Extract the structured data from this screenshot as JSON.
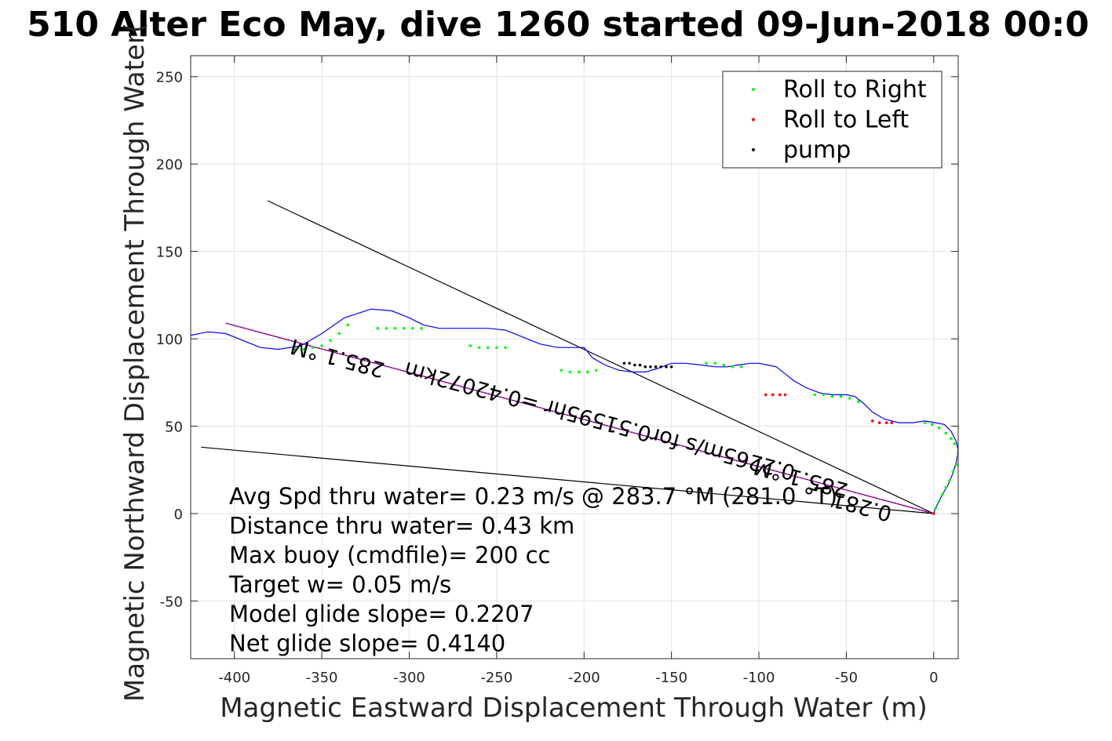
{
  "chart_data": {
    "type": "line",
    "title": "510 Alter Eco May, dive 1260 started 09-Jun-2018 00:0",
    "xlabel": "Magnetic Eastward Displacement Through Water (m)",
    "ylabel": "Magnetic Northward Displacement Through Water(",
    "xlim": [
      -425,
      14
    ],
    "ylim": [
      -83,
      262
    ],
    "grid": true,
    "x_ticks": [
      {
        "value": -400,
        "label": "-400"
      },
      {
        "value": -350,
        "label": "-350"
      },
      {
        "value": -300,
        "label": "-300"
      },
      {
        "value": -250,
        "label": "-250"
      },
      {
        "value": -200,
        "label": "-200"
      },
      {
        "value": -150,
        "label": "-150"
      },
      {
        "value": -100,
        "label": "-100"
      },
      {
        "value": -50,
        "label": "-50"
      },
      {
        "value": 0,
        "label": "0"
      }
    ],
    "y_ticks": [
      {
        "value": -50,
        "label": "-50"
      },
      {
        "value": 0,
        "label": "0"
      },
      {
        "value": 50,
        "label": "50"
      },
      {
        "value": 100,
        "label": "100"
      },
      {
        "value": 150,
        "label": "150"
      },
      {
        "value": 200,
        "label": "200"
      },
      {
        "value": 250,
        "label": "250"
      }
    ],
    "legend": {
      "placement": "top-right",
      "entries": [
        {
          "label": "Roll to Right",
          "color": "#00ff00"
        },
        {
          "label": "Roll to Left",
          "color": "#ff0000"
        },
        {
          "label": "pump",
          "color": "#000000"
        }
      ]
    },
    "track": {
      "color": "#0000ff",
      "x": [
        -425,
        -415,
        -405,
        -395,
        -385,
        -375,
        -362,
        -350,
        -337,
        -322,
        -310,
        -300,
        -292,
        -283,
        -275,
        -265,
        -255,
        -245,
        -235,
        -225,
        -215,
        -205,
        -200,
        -195,
        -188,
        -180,
        -172,
        -165,
        -158,
        -150,
        -142,
        -133,
        -125,
        -118,
        -112,
        -105,
        -100,
        -95,
        -90,
        -85,
        -80,
        -73,
        -65,
        -58,
        -50,
        -45,
        -40,
        -35,
        -28,
        -20,
        -12,
        -5,
        1,
        6,
        10,
        13,
        14,
        13,
        11,
        8,
        5,
        3,
        1,
        0
      ],
      "y": [
        102,
        104,
        103,
        99,
        95,
        94,
        96,
        103,
        112,
        117,
        116,
        112,
        108,
        106,
        106,
        106,
        106,
        105,
        101,
        97,
        95,
        95,
        95,
        89,
        85,
        82,
        81,
        81,
        83,
        86,
        86,
        85,
        84,
        84,
        85,
        86,
        86,
        85,
        84,
        80,
        76,
        72,
        69,
        68,
        68,
        67,
        63,
        58,
        54,
        52,
        52,
        53,
        52,
        51,
        47,
        41,
        36,
        30,
        23,
        16,
        11,
        7,
        3,
        0
      ]
    },
    "scatter": {
      "roll_right": {
        "color": "#00ff00",
        "x": [
          -365,
          -360,
          -355,
          -350,
          -345,
          -340,
          -335,
          -318,
          -313,
          -308,
          -303,
          -298,
          -293,
          -265,
          -260,
          -255,
          -250,
          -245,
          -213,
          -208,
          -203,
          -198,
          -193,
          -130,
          -125,
          -120,
          -115,
          -110,
          -68,
          -63,
          -58,
          -53,
          -48,
          -43,
          -5,
          -1,
          3,
          7,
          10,
          12,
          14,
          14,
          13,
          11,
          9,
          7,
          5,
          3,
          1
        ],
        "y": [
          94,
          94,
          95,
          96,
          99,
          103,
          108,
          106,
          106,
          106,
          106,
          106,
          106,
          96,
          95,
          95,
          95,
          95,
          82,
          81,
          81,
          81,
          82,
          86,
          86,
          85,
          84,
          84,
          68,
          68,
          67,
          67,
          66,
          64,
          52,
          51,
          49,
          46,
          43,
          40,
          36,
          33,
          28,
          24,
          19,
          15,
          11,
          7,
          3
        ]
      },
      "roll_left": {
        "color": "#ff0000",
        "x": [
          -96,
          -92,
          -88,
          -85,
          -35,
          -31,
          -27,
          -24,
          0
        ],
        "y": [
          68,
          68,
          68,
          68,
          53,
          52,
          52,
          52,
          0
        ]
      },
      "pump": {
        "color": "#000000",
        "x": [
          -177,
          -174,
          -171,
          -168,
          -165,
          -162,
          -159,
          -156,
          -153,
          -150
        ],
        "y": [
          86,
          86,
          85,
          85,
          84,
          84,
          84,
          84,
          84,
          84
        ]
      }
    },
    "lines": [
      {
        "color": "#000000",
        "x": [
          -381,
          0
        ],
        "y": [
          179,
          0
        ]
      },
      {
        "color": "#000000",
        "x": [
          -419,
          0
        ],
        "y": [
          38,
          0
        ]
      },
      {
        "color": "#000000",
        "x": [
          -405,
          0
        ],
        "y": [
          109,
          0
        ]
      },
      {
        "color": "#ff00ff",
        "x": [
          -405,
          0
        ],
        "y": [
          109,
          0
        ],
        "dashed": true
      }
    ],
    "annotations": [
      {
        "text": "285.1 °M",
        "x": -340,
        "y": 93,
        "rotation": 195
      },
      {
        "text": "0.2265m/s for0.51595hr =0.42072km",
        "x": -190,
        "y": 57,
        "rotation": 195
      },
      {
        "text": "285.1 °M",
        "x": -75,
        "y": 24,
        "rotation": 195
      },
      {
        "text": "0.281",
        "x": -40,
        "y": 8,
        "rotation": 195
      }
    ],
    "stats": [
      "Avg Spd thru water=  0.23 m/s @ 283.7 °M (281.0 °T)",
      "Distance thru water=  0.43 km",
      "Max buoy (cmdfile)= 200 cc",
      "Target w= 0.05 m/s",
      "Model glide slope= 0.2207",
      "Net glide slope= 0.4140"
    ]
  }
}
